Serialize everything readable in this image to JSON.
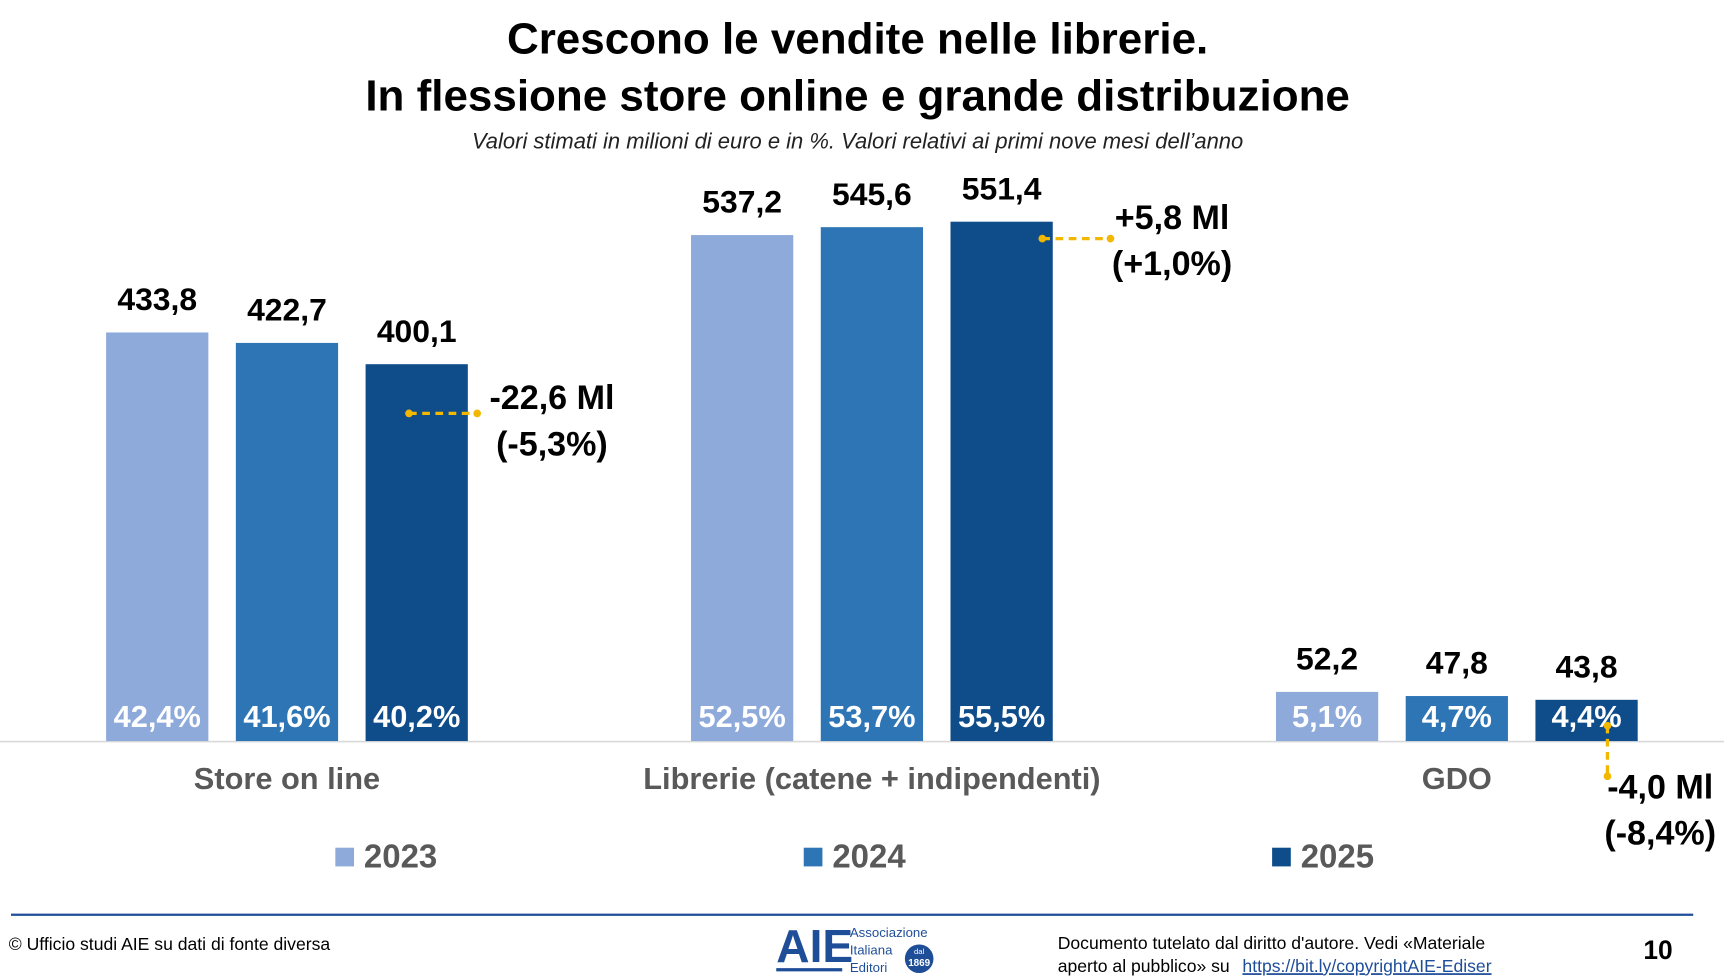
{
  "chart_data": {
    "type": "bar",
    "title": [
      "Crescono le vendite nelle librerie.",
      "In flessione store online e grande distribuzione"
    ],
    "subtitle": "Valori stimati in milioni di euro e in %. Valori relativi ai primi nove mesi dell’anno",
    "categories": [
      "Store on line",
      "Librerie (catene + indipendenti)",
      "GDO"
    ],
    "series": [
      {
        "name": "2023",
        "color": "#8eaadb",
        "values": [
          433.8,
          537.2,
          52.2
        ],
        "value_labels": [
          "433,8",
          "537,2",
          "52,2"
        ],
        "shares": [
          42.4,
          52.5,
          5.1
        ],
        "share_labels": [
          "42,4%",
          "52,5%",
          "5,1%"
        ]
      },
      {
        "name": "2024",
        "color": "#2e75b6",
        "values": [
          422.7,
          545.6,
          47.8
        ],
        "value_labels": [
          "422,7",
          "545,6",
          "47,8"
        ],
        "shares": [
          41.6,
          53.7,
          4.7
        ],
        "share_labels": [
          "41,6%",
          "53,7%",
          "4,7%"
        ]
      },
      {
        "name": "2025",
        "color": "#0f4c8a",
        "values": [
          400.1,
          551.4,
          43.8
        ],
        "value_labels": [
          "400,1",
          "551,4",
          "43,8"
        ],
        "shares": [
          40.2,
          55.5,
          4.4
        ],
        "share_labels": [
          "40,2%",
          "55,5%",
          "4,4%"
        ]
      }
    ],
    "annotations": [
      {
        "change": "-22,6 Ml",
        "percent": "(-5,3%)"
      },
      {
        "change": "+5,8 Ml",
        "percent": "(+1,0%)"
      },
      {
        "change": "-4,0 Ml",
        "percent": "(-8,4%)"
      }
    ],
    "ylim": [
      0,
      600
    ]
  },
  "footer": {
    "source": "© Ufficio studi AIE su dati di fonte diversa",
    "logo": {
      "mark": "AIE",
      "lines": [
        "Associazione",
        "Italiana",
        "Editori"
      ],
      "badge": [
        "dal",
        "1869"
      ]
    },
    "notice": [
      "Documento tutelato dal diritto d'autore. Vedi «Materiale",
      "aperto al pubblico» su"
    ],
    "link": "https://bit.ly/copyrightAIE-Ediser",
    "page": "10"
  }
}
